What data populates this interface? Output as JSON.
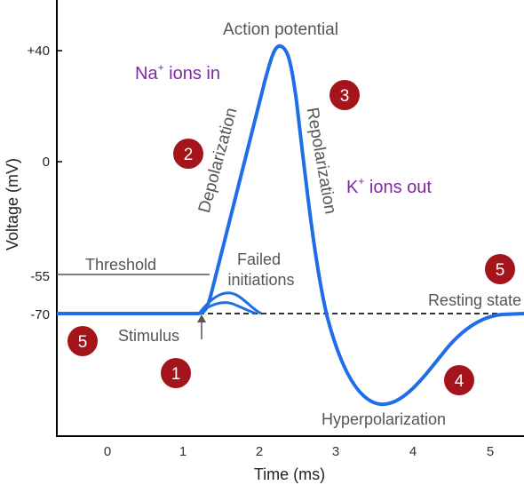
{
  "diagram": {
    "title": "Action potential",
    "x_axis": {
      "label": "Time (ms)",
      "ticks": [
        "0",
        "1",
        "2",
        "3",
        "4",
        "5"
      ]
    },
    "y_axis": {
      "label": "Voltage (mV)",
      "ticks": [
        "+40",
        "0",
        "-55",
        "-70"
      ]
    },
    "phase_labels": {
      "na_prefix": "Na",
      "na_suffix": " ions in",
      "k_prefix": "K",
      "k_suffix": " ions out",
      "ion_sign": "+",
      "depolarization": "Depolarization",
      "repolarization": "Repolarization",
      "threshold": "Threshold",
      "failed_line1": "Failed",
      "failed_line2": "initiations",
      "resting_state": "Resting state",
      "stimulus": "Stimulus",
      "hyperpolarization": "Hyperpolarization"
    },
    "steps": [
      "1",
      "2",
      "3",
      "4",
      "5",
      "5"
    ]
  },
  "chart_data": {
    "type": "line",
    "title": "Action potential",
    "xlabel": "Time (ms)",
    "ylabel": "Voltage (mV)",
    "x_ticks": [
      0,
      1,
      2,
      3,
      4,
      5
    ],
    "y_ticks": [
      40,
      0,
      -55,
      -70
    ],
    "xlim": [
      -0.68,
      5.4
    ],
    "ylim": [
      -110,
      52
    ],
    "series": [
      {
        "x": [
          -0.68,
          1.2,
          1.3,
          2.05,
          2.2,
          2.3,
          2.45,
          2.7,
          3.0,
          3.3,
          3.55,
          3.7,
          3.95,
          4.3,
          4.7,
          5.1,
          5.4
        ],
        "y": [
          -70,
          -70,
          -62,
          25,
          38,
          40,
          30,
          -20,
          -62,
          -90,
          -98,
          -96,
          -85,
          -76,
          -71.5,
          -70.2,
          -70
        ]
      }
    ],
    "failed_initiations": [
      {
        "x": [
          1.2,
          1.35,
          1.5,
          1.65,
          1.8
        ],
        "y": [
          -70,
          -63,
          -62,
          -64,
          -70
        ]
      },
      {
        "x": [
          1.2,
          1.35,
          1.5,
          1.65,
          1.8
        ],
        "y": [
          -70,
          -66,
          -65.5,
          -67,
          -70
        ]
      }
    ],
    "threshold": -55,
    "resting": -70,
    "stimulus_time": 1.2,
    "colors": {
      "curve": "#1f6ee8",
      "axis": "#000000",
      "text": "#555555",
      "ion_text": "#7b2c9e",
      "badge": "#a3141b"
    }
  }
}
